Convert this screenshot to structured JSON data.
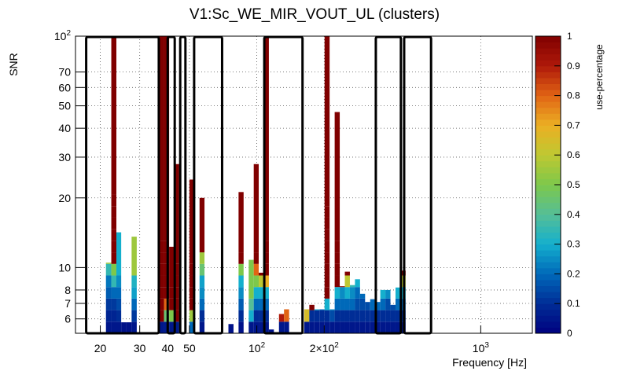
{
  "chart_data": {
    "type": "heatmap",
    "title": "V1:Sc_WE_MIR_VOUT_UL (clusters)",
    "xlabel": "Frequency [Hz]",
    "ylabel": "SNR",
    "zlabel": "use-percentage",
    "x_scale": "log",
    "y_scale": "log",
    "xlim": [
      15.5,
      1700
    ],
    "ylim": [
      5.2,
      100
    ],
    "zlim": [
      0,
      1
    ],
    "x_ticks": [
      {
        "value": 20,
        "label": "20"
      },
      {
        "value": 30,
        "label": "30"
      },
      {
        "value": 40,
        "label": "40"
      },
      {
        "value": 50,
        "label": "50"
      },
      {
        "value": 100,
        "label": "10",
        "sup": "2"
      },
      {
        "value": 200,
        "label": "2×10",
        "sup": "2"
      },
      {
        "value": 1000,
        "label": "10",
        "sup": "3"
      }
    ],
    "y_ticks": [
      {
        "value": 6,
        "label": "6"
      },
      {
        "value": 7,
        "label": "7"
      },
      {
        "value": 8,
        "label": "8"
      },
      {
        "value": 10,
        "label": "10"
      },
      {
        "value": 20,
        "label": "20"
      },
      {
        "value": 30,
        "label": "30"
      },
      {
        "value": 40,
        "label": "40"
      },
      {
        "value": 50,
        "label": "50"
      },
      {
        "value": 60,
        "label": "60"
      },
      {
        "value": 70,
        "label": "70"
      },
      {
        "value": 100,
        "label": "10",
        "sup": "2"
      }
    ],
    "z_ticks": [
      0,
      0.1,
      0.2,
      0.3,
      0.4,
      0.5,
      0.6,
      0.7,
      0.8,
      0.9,
      1
    ],
    "columns": [
      {
        "f": [
          21.2,
          22.4
        ],
        "snr_max": 10.5,
        "levels": [
          0.05,
          0.08,
          0.12,
          0.18,
          0.22,
          0.35,
          0.55
        ]
      },
      {
        "f": [
          22.4,
          23.6
        ],
        "snr_max": 100,
        "levels": [
          0.05,
          0.08,
          0.12,
          0.2,
          0.35,
          0.5,
          1,
          1,
          1,
          1,
          1,
          1,
          1
        ]
      },
      {
        "f": [
          23.6,
          24.8
        ],
        "snr_max": 14.2,
        "levels": [
          0.05,
          0.1,
          0.15,
          0.2,
          0.25,
          0.3
        ]
      },
      {
        "f": [
          24.8,
          26.2
        ],
        "snr_max": 5.8,
        "levels": [
          0.04
        ]
      },
      {
        "f": [
          26.2,
          27.6
        ],
        "snr_max": 5.8,
        "levels": [
          0.04
        ]
      },
      {
        "f": [
          27.6,
          29.1
        ],
        "snr_max": 13.6,
        "levels": [
          0.05,
          0.12,
          0.2,
          0.28,
          0.32,
          0.55
        ]
      },
      {
        "f": [
          36.6,
          38.5
        ],
        "snr_max": 100,
        "levels": [
          0.05,
          1,
          1,
          1,
          1,
          1,
          1,
          1,
          1
        ]
      },
      {
        "f": [
          38.5,
          40.6
        ],
        "snr_max": 100,
        "levels": [
          0.06,
          0.45,
          0.8,
          1,
          1,
          1,
          1,
          1,
          1
        ]
      },
      {
        "f": [
          40.6,
          42.8
        ],
        "snr_max": 12.3,
        "levels": [
          0.05,
          0.5,
          1,
          1,
          1
        ]
      },
      {
        "f": [
          42.8,
          45.0
        ],
        "snr_max": 28,
        "levels": [
          0.06,
          1,
          1,
          1,
          1,
          1,
          1
        ]
      },
      {
        "f": [
          50.0,
          52.7
        ],
        "snr_max": 24,
        "levels": [
          0.2,
          0.55,
          1,
          1,
          1,
          1,
          1
        ]
      },
      {
        "f": [
          55.5,
          58.4
        ],
        "snr_max": 20,
        "levels": [
          0.05,
          0.1,
          0.2,
          0.25,
          0.28,
          0.45,
          0.55,
          1
        ]
      },
      {
        "f": [
          61.5,
          64.7
        ],
        "snr_max": 5.2,
        "levels": []
      },
      {
        "f": [
          74.7,
          78.7
        ],
        "snr_max": 5.7,
        "levels": [
          0.04
        ]
      },
      {
        "f": [
          82.9,
          87.3
        ],
        "snr_max": 21.2,
        "levels": [
          0.04,
          0.1,
          0.18,
          0.25,
          0.3,
          0.5,
          1,
          1
        ]
      },
      {
        "f": [
          92.0,
          96.9
        ],
        "snr_max": 10.8,
        "levels": [
          0.05,
          0.3,
          0.4,
          0.5
        ]
      },
      {
        "f": [
          96.9,
          102.0
        ],
        "snr_max": 28,
        "levels": [
          0.05,
          0.1,
          0.2,
          0.3,
          0.5,
          0.8,
          1,
          1
        ]
      },
      {
        "f": [
          102.0,
          107.5
        ],
        "snr_max": 9.5,
        "levels": [
          0.05,
          0.1,
          0.2,
          0.3,
          0.6,
          1
        ]
      },
      {
        "f": [
          107.5,
          113.2
        ],
        "snr_max": 100,
        "levels": [
          0.05,
          0.1,
          0.2,
          0.3,
          0.7,
          1,
          1,
          1,
          1
        ]
      },
      {
        "f": [
          113.2,
          119.2
        ],
        "snr_max": 5.4,
        "levels": [
          0.04
        ]
      },
      {
        "f": [
          125.6,
          132.3
        ],
        "snr_max": 6.3,
        "levels": [
          0.05,
          0.9
        ]
      },
      {
        "f": [
          132.3,
          139.4
        ],
        "snr_max": 6.6,
        "levels": [
          0.05,
          0.8
        ]
      },
      {
        "f": [
          162.9,
          171.6
        ],
        "snr_max": 6.6,
        "levels": [
          0.05,
          0.65
        ]
      },
      {
        "f": [
          171.6,
          180.8
        ],
        "snr_max": 6.9,
        "levels": [
          0.05,
          0.1,
          1
        ]
      },
      {
        "f": [
          180.8,
          190.5
        ],
        "snr_max": 6.6,
        "levels": [
          0.05,
          0.1,
          0.3
        ]
      },
      {
        "f": [
          190.5,
          200.7
        ],
        "snr_max": 6.6,
        "levels": [
          0.05,
          0.1,
          0.2
        ]
      },
      {
        "f": [
          200.7,
          211.4
        ],
        "snr_max": 100,
        "levels": [
          0.05,
          0.1,
          0.3,
          1,
          1,
          1,
          1,
          1,
          1,
          1,
          1,
          1
        ]
      },
      {
        "f": [
          211.4,
          222.7
        ],
        "snr_max": 6.6,
        "levels": [
          0.05,
          0.15,
          0.25
        ]
      },
      {
        "f": [
          222.7,
          234.6
        ],
        "snr_max": 47,
        "levels": [
          0.05,
          0.1,
          0.2,
          0.3,
          1,
          1,
          1,
          1,
          1
        ]
      },
      {
        "f": [
          234.6,
          247.2
        ],
        "snr_max": 8.3,
        "levels": [
          0.05,
          0.1,
          0.2,
          0.25,
          1
        ]
      },
      {
        "f": [
          247.2,
          260.4
        ],
        "snr_max": 9.6,
        "levels": [
          0.05,
          0.1,
          0.2,
          0.3,
          0.6,
          1
        ]
      },
      {
        "f": [
          260.4,
          274.4
        ],
        "snr_max": 8.4,
        "levels": [
          0.05,
          0.1,
          0.2,
          0.25,
          0.35,
          0.8
        ]
      },
      {
        "f": [
          274.4,
          289.0
        ],
        "snr_max": 8.9,
        "levels": [
          0.05,
          0.1,
          0.15,
          0.2,
          0.3,
          1
        ]
      },
      {
        "f": [
          289.0,
          304.5
        ],
        "snr_max": 7.7,
        "levels": [
          0.05,
          0.1,
          0.15,
          0.2,
          0.4
        ]
      },
      {
        "f": [
          304.5,
          320.8
        ],
        "snr_max": 7.1,
        "levels": [
          0.05,
          0.1,
          0.15,
          0.35
        ]
      },
      {
        "f": [
          320.8,
          338.0
        ],
        "snr_max": 7.3,
        "levels": [
          0.05,
          0.1,
          0.2,
          0.5
        ]
      },
      {
        "f": [
          338.0,
          356.0
        ],
        "snr_max": 7.1,
        "levels": [
          0.05,
          0.1,
          0.2,
          0.6
        ]
      },
      {
        "f": [
          356.0,
          375.1
        ],
        "snr_max": 8.0,
        "levels": [
          0.05,
          0.1,
          0.2,
          0.3,
          1
        ]
      },
      {
        "f": [
          375.1,
          395.2
        ],
        "snr_max": 8.0,
        "levels": [
          0.05,
          0.1,
          0.15,
          0.25,
          0.7
        ]
      },
      {
        "f": [
          395.2,
          416.3
        ],
        "snr_max": 6.9,
        "levels": [
          0.05,
          0.1,
          0.15,
          0.55
        ]
      },
      {
        "f": [
          416.3,
          438.5
        ],
        "snr_max": 8.2,
        "levels": [
          0.05,
          0.1,
          0.2,
          0.3,
          1
        ]
      },
      {
        "f": [
          438.5,
          462.0
        ],
        "snr_max": 9.7,
        "levels": [
          0.05,
          0.1,
          0.2,
          0.3,
          0.6,
          1
        ]
      }
    ],
    "highlight_boxes": [
      [
        17.3,
        36.5
      ],
      [
        40.0,
        43.0
      ],
      [
        45.5,
        48.0
      ],
      [
        52.5,
        70.0
      ],
      [
        108.0,
        160.0
      ],
      [
        340.0,
        440.0
      ],
      [
        455.0,
        600.0
      ]
    ]
  }
}
